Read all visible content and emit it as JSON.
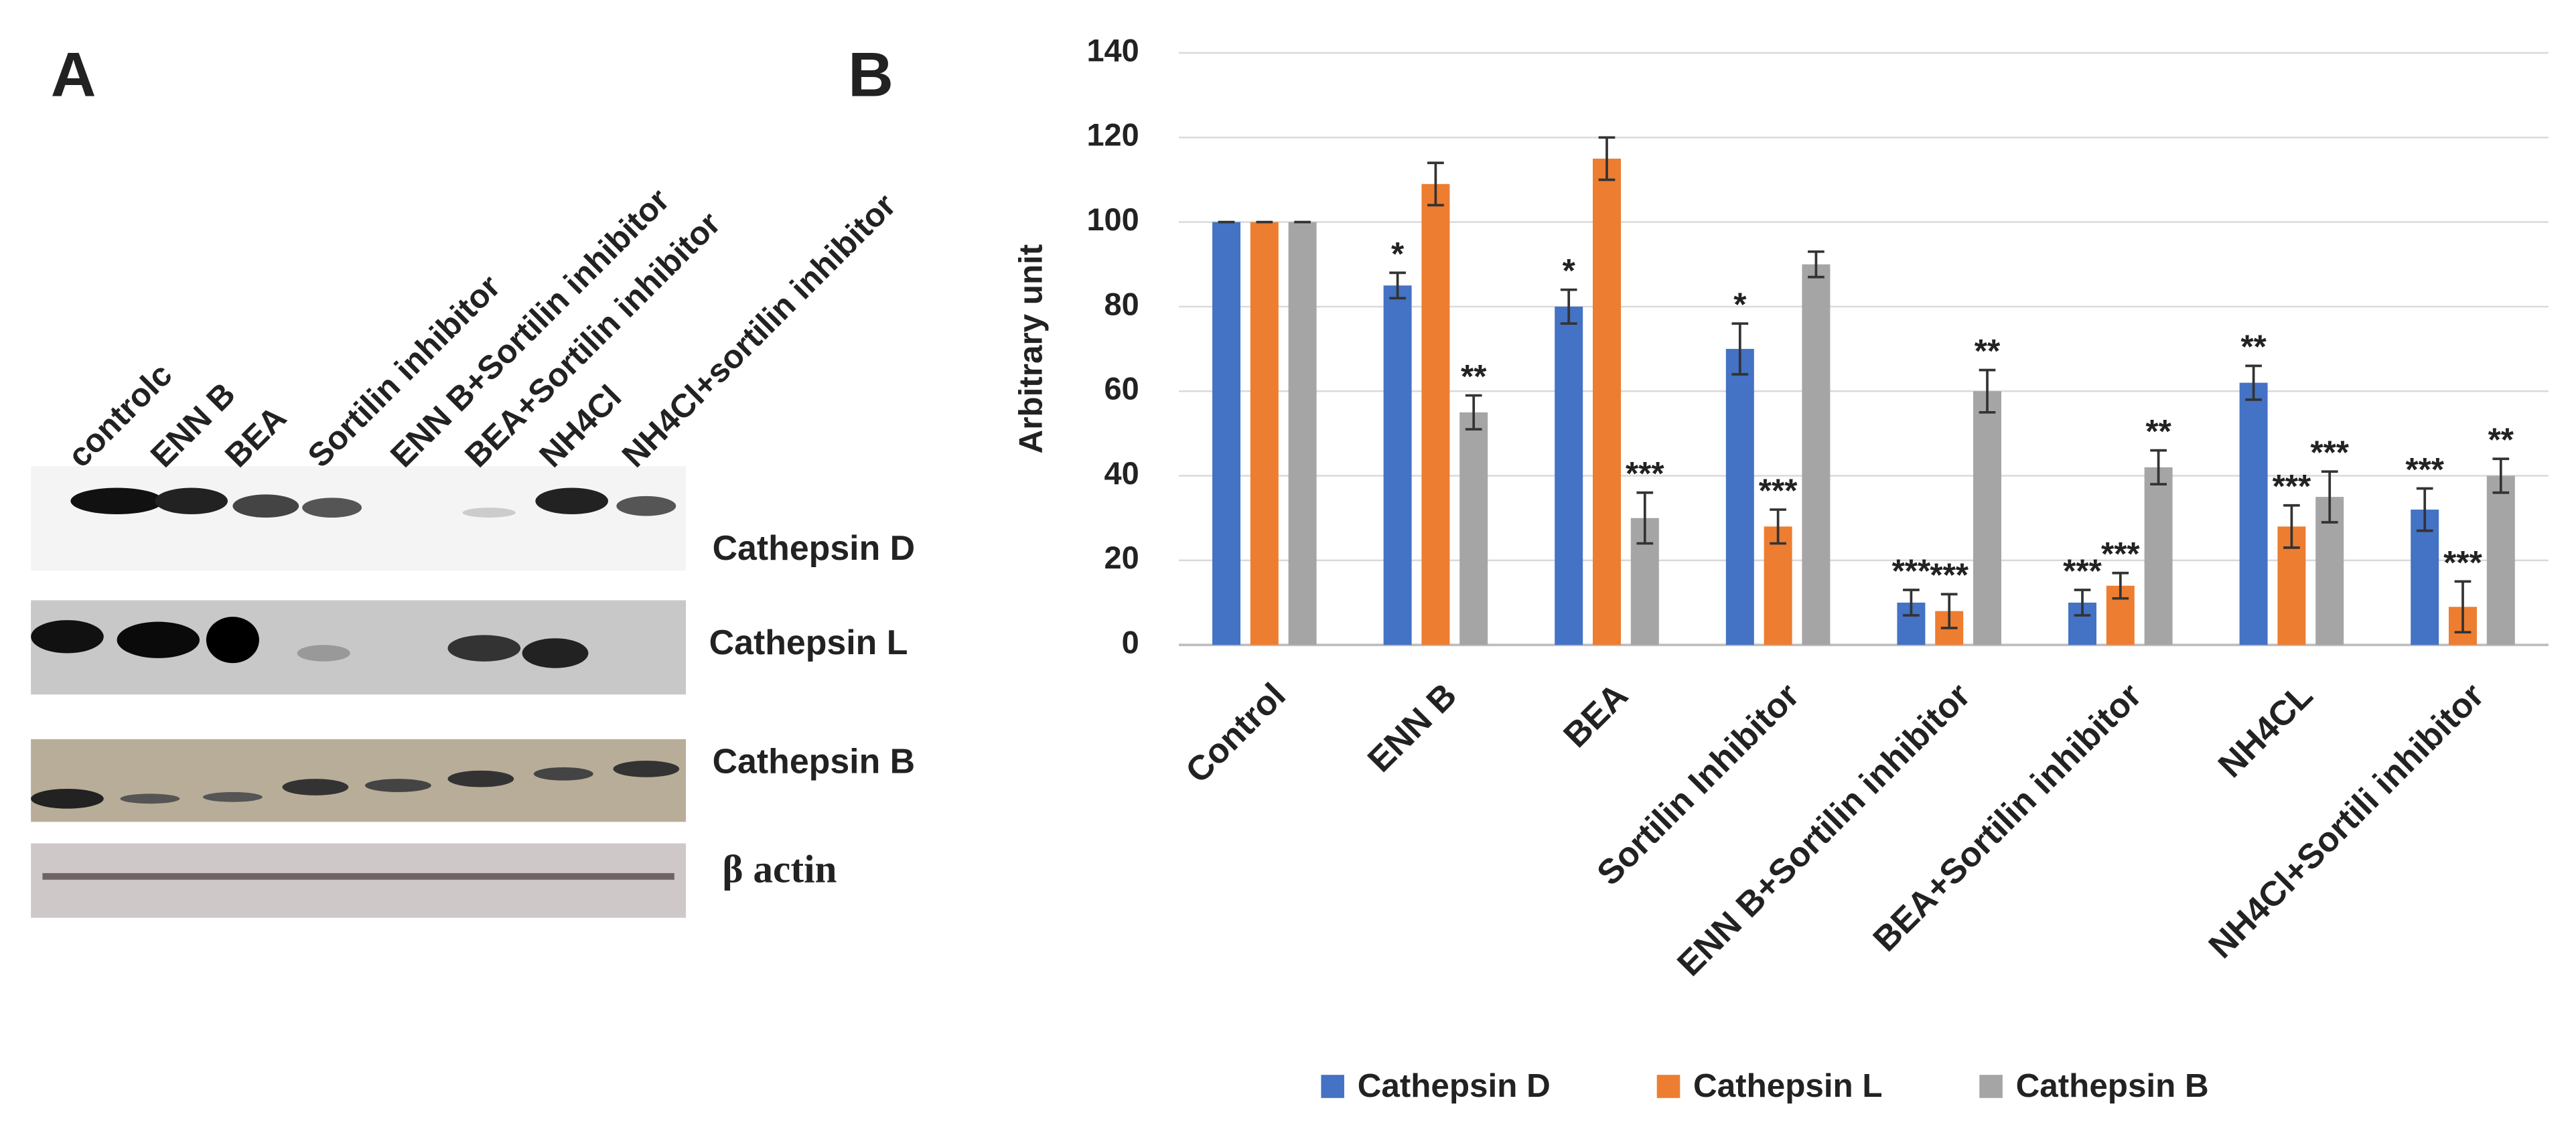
{
  "panel_a": {
    "label": "A",
    "lanes": [
      "controlc",
      "ENN B",
      "BEA",
      "Sortilin inhibitor",
      "ENN B+Sortilin inhibitor",
      "BEA+Sortilin inhibitor",
      "NH4Cl",
      "NH4Cl+sortilin inhibitor"
    ],
    "bands": [
      "Cathepsin  D",
      "Cathepsin L",
      "Cathepsin B",
      "β actin"
    ]
  },
  "chart_data": {
    "type": "bar",
    "panel_label": "B",
    "y_label": "Arbitrary unit",
    "categories": [
      "Control",
      "ENN B",
      "BEA",
      "Sortilin Inhibitor",
      "ENN B+Sortilin inhibitor",
      "BEA+Sortilin inhibitor",
      "NH4CL",
      "NH4Cl+Sortili inhibitor"
    ],
    "series": [
      {
        "name": "Cathepsin D",
        "color": "#4472c4",
        "values": [
          100,
          85,
          80,
          70,
          10,
          10,
          62,
          32
        ],
        "errors": [
          0,
          3,
          4,
          6,
          3,
          3,
          4,
          5
        ],
        "labels": [
          null,
          "*",
          "*",
          "*",
          "***",
          "***",
          "**",
          "***"
        ]
      },
      {
        "name": "Cathepsin L",
        "color": "#ed7d31",
        "values": [
          100,
          109,
          115,
          28,
          8,
          14,
          28,
          9
        ],
        "errors": [
          0,
          5,
          5,
          4,
          4,
          3,
          5,
          6
        ],
        "labels": [
          null,
          null,
          null,
          "***",
          "***",
          "***",
          "***",
          "***"
        ]
      },
      {
        "name": "Cathepsin B",
        "color": "#a5a5a5",
        "values": [
          100,
          55,
          30,
          90,
          60,
          42,
          35,
          40
        ],
        "errors": [
          0,
          4,
          6,
          3,
          5,
          4,
          6,
          4
        ],
        "labels": [
          null,
          "**",
          "***",
          null,
          "**",
          "**",
          "***",
          "**"
        ]
      }
    ],
    "ylim": [
      0,
      140
    ],
    "yticks": [
      0,
      20,
      40,
      60,
      80,
      100,
      120,
      140
    ],
    "grid": true
  }
}
